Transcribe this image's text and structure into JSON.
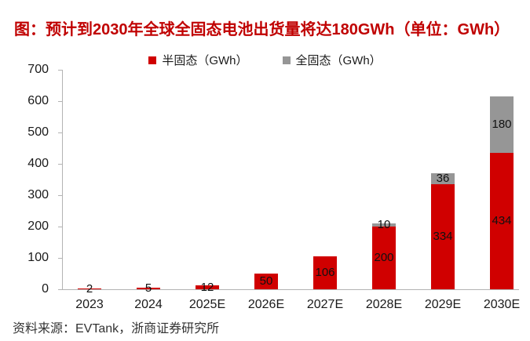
{
  "title": {
    "text": "图：预计到2030年全球全固态电池出货量将达180GWh（单位：GWh）",
    "color": "#c00000"
  },
  "legend": [
    {
      "label": "半固态（GWh）",
      "color": "#d00000"
    },
    {
      "label": "全固态（GWh）",
      "color": "#969696"
    }
  ],
  "chart_data": {
    "type": "bar",
    "stacked": true,
    "title": "图：预计到2030年全球全固态电池出货量将达180GWh（单位：GWh）",
    "categories": [
      "2023",
      "2024",
      "2025E",
      "2026E",
      "2027E",
      "2028E",
      "2029E",
      "2030E"
    ],
    "series": [
      {
        "name": "半固态（GWh）",
        "color": "#d00000",
        "values": [
          2,
          5,
          12,
          50,
          106,
          200,
          334,
          434
        ]
      },
      {
        "name": "全固态（GWh）",
        "color": "#969696",
        "values": [
          0,
          0,
          0,
          0,
          0,
          10,
          36,
          180
        ]
      }
    ],
    "xlabel": "",
    "ylabel": "",
    "ylim": [
      0,
      700
    ],
    "ytick_interval": 100,
    "grid": false,
    "show_value_labels": true,
    "value_label_color": "#111111",
    "legend_position": "top"
  },
  "footer": {
    "text": "资料来源：EVTank，浙商证券研究所"
  }
}
